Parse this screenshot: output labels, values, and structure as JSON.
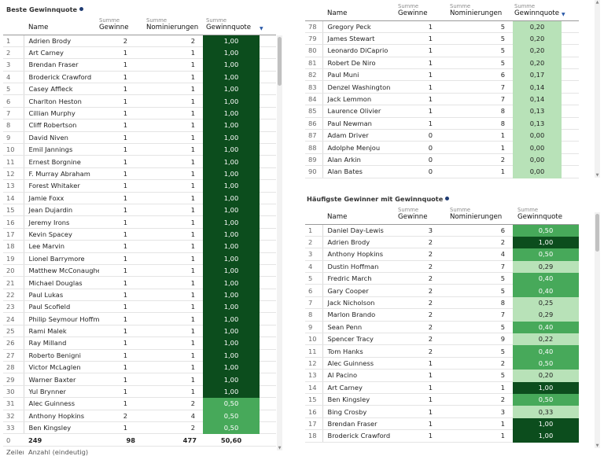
{
  "colors": {
    "rate_dark": "#0c4d1d",
    "rate_mid": "#47a95a",
    "rate_light": "#b8e2b8",
    "info_dot": "#1f3c73"
  },
  "headers": {
    "sum": "Summe",
    "name": "Name",
    "wins": "Gewinne",
    "noms": "Nominierungen",
    "rate": "Gewinnquote"
  },
  "left": {
    "title": "Beste Gewinnquote",
    "rows": [
      [
        "1",
        "Adrien Brody",
        "2",
        "2",
        "1,00"
      ],
      [
        "2",
        "Art Carney",
        "1",
        "1",
        "1,00"
      ],
      [
        "3",
        "Brendan Fraser",
        "1",
        "1",
        "1,00"
      ],
      [
        "4",
        "Broderick Crawford",
        "1",
        "1",
        "1,00"
      ],
      [
        "5",
        "Casey Affleck",
        "1",
        "1",
        "1,00"
      ],
      [
        "6",
        "Charlton Heston",
        "1",
        "1",
        "1,00"
      ],
      [
        "7",
        "Cillian Murphy",
        "1",
        "1",
        "1,00"
      ],
      [
        "8",
        "Cliff Robertson",
        "1",
        "1",
        "1,00"
      ],
      [
        "9",
        "David Niven",
        "1",
        "1",
        "1,00"
      ],
      [
        "10",
        "Emil Jannings",
        "1",
        "1",
        "1,00"
      ],
      [
        "11",
        "Ernest Borgnine",
        "1",
        "1",
        "1,00"
      ],
      [
        "12",
        "F. Murray Abraham",
        "1",
        "1",
        "1,00"
      ],
      [
        "13",
        "Forest Whitaker",
        "1",
        "1",
        "1,00"
      ],
      [
        "14",
        "Jamie Foxx",
        "1",
        "1",
        "1,00"
      ],
      [
        "15",
        "Jean Dujardin",
        "1",
        "1",
        "1,00"
      ],
      [
        "16",
        "Jeremy Irons",
        "1",
        "1",
        "1,00"
      ],
      [
        "17",
        "Kevin Spacey",
        "1",
        "1",
        "1,00"
      ],
      [
        "18",
        "Lee Marvin",
        "1",
        "1",
        "1,00"
      ],
      [
        "19",
        "Lionel Barrymore",
        "1",
        "1",
        "1,00"
      ],
      [
        "20",
        "Matthew McConaughey",
        "1",
        "1",
        "1,00"
      ],
      [
        "21",
        "Michael Douglas",
        "1",
        "1",
        "1,00"
      ],
      [
        "22",
        "Paul Lukas",
        "1",
        "1",
        "1,00"
      ],
      [
        "23",
        "Paul Scofield",
        "1",
        "1",
        "1,00"
      ],
      [
        "24",
        "Philip Seymour Hoffman",
        "1",
        "1",
        "1,00"
      ],
      [
        "25",
        "Rami Malek",
        "1",
        "1",
        "1,00"
      ],
      [
        "26",
        "Ray Milland",
        "1",
        "1",
        "1,00"
      ],
      [
        "27",
        "Roberto Benigni",
        "1",
        "1",
        "1,00"
      ],
      [
        "28",
        "Victor McLaglen",
        "1",
        "1",
        "1,00"
      ],
      [
        "29",
        "Warner Baxter",
        "1",
        "1",
        "1,00"
      ],
      [
        "30",
        "Yul Brynner",
        "1",
        "1",
        "1,00"
      ],
      [
        "31",
        "Alec Guinness",
        "1",
        "2",
        "0,50"
      ],
      [
        "32",
        "Anthony Hopkins",
        "2",
        "4",
        "0,50"
      ],
      [
        "33",
        "Ben Kingsley",
        "1",
        "2",
        "0,50"
      ]
    ],
    "totals": {
      "idx": "0",
      "name": "249",
      "wins": "98",
      "noms": "477",
      "rate": "50,60"
    },
    "totals_labels": {
      "rows": "Zeilen",
      "count": "Anzahl (eindeutig)"
    }
  },
  "topright": {
    "rows": [
      [
        "78",
        "Gregory Peck",
        "1",
        "5",
        "0,20"
      ],
      [
        "79",
        "James Stewart",
        "1",
        "5",
        "0,20"
      ],
      [
        "80",
        "Leonardo DiCaprio",
        "1",
        "5",
        "0,20"
      ],
      [
        "81",
        "Robert De Niro",
        "1",
        "5",
        "0,20"
      ],
      [
        "82",
        "Paul Muni",
        "1",
        "6",
        "0,17"
      ],
      [
        "83",
        "Denzel Washington",
        "1",
        "7",
        "0,14"
      ],
      [
        "84",
        "Jack Lemmon",
        "1",
        "7",
        "0,14"
      ],
      [
        "85",
        "Laurence Olivier",
        "1",
        "8",
        "0,13"
      ],
      [
        "86",
        "Paul Newman",
        "1",
        "8",
        "0,13"
      ],
      [
        "87",
        "Adam Driver",
        "0",
        "1",
        "0,00"
      ],
      [
        "88",
        "Adolphe Menjou",
        "0",
        "1",
        "0,00"
      ],
      [
        "89",
        "Alan Arkin",
        "0",
        "2",
        "0,00"
      ],
      [
        "90",
        "Alan Bates",
        "0",
        "1",
        "0,00"
      ]
    ]
  },
  "bottomright": {
    "title": "Häufigste Gewinner mit Gewinnquote",
    "rows": [
      [
        "1",
        "Daniel Day-Lewis",
        "3",
        "6",
        "0,50"
      ],
      [
        "2",
        "Adrien Brody",
        "2",
        "2",
        "1,00"
      ],
      [
        "3",
        "Anthony Hopkins",
        "2",
        "4",
        "0,50"
      ],
      [
        "4",
        "Dustin Hoffman",
        "2",
        "7",
        "0,29"
      ],
      [
        "5",
        "Fredric March",
        "2",
        "5",
        "0,40"
      ],
      [
        "6",
        "Gary Cooper",
        "2",
        "5",
        "0,40"
      ],
      [
        "7",
        "Jack Nicholson",
        "2",
        "8",
        "0,25"
      ],
      [
        "8",
        "Marlon Brando",
        "2",
        "7",
        "0,29"
      ],
      [
        "9",
        "Sean Penn",
        "2",
        "5",
        "0,40"
      ],
      [
        "10",
        "Spencer Tracy",
        "2",
        "9",
        "0,22"
      ],
      [
        "11",
        "Tom Hanks",
        "2",
        "5",
        "0,40"
      ],
      [
        "12",
        "Alec Guinness",
        "1",
        "2",
        "0,50"
      ],
      [
        "13",
        "Al Pacino",
        "1",
        "5",
        "0,20"
      ],
      [
        "14",
        "Art Carney",
        "1",
        "1",
        "1,00"
      ],
      [
        "15",
        "Ben Kingsley",
        "1",
        "2",
        "0,50"
      ],
      [
        "16",
        "Bing Crosby",
        "1",
        "3",
        "0,33"
      ],
      [
        "17",
        "Brendan Fraser",
        "1",
        "1",
        "1,00"
      ],
      [
        "18",
        "Broderick Crawford",
        "1",
        "1",
        "1,00"
      ]
    ]
  }
}
